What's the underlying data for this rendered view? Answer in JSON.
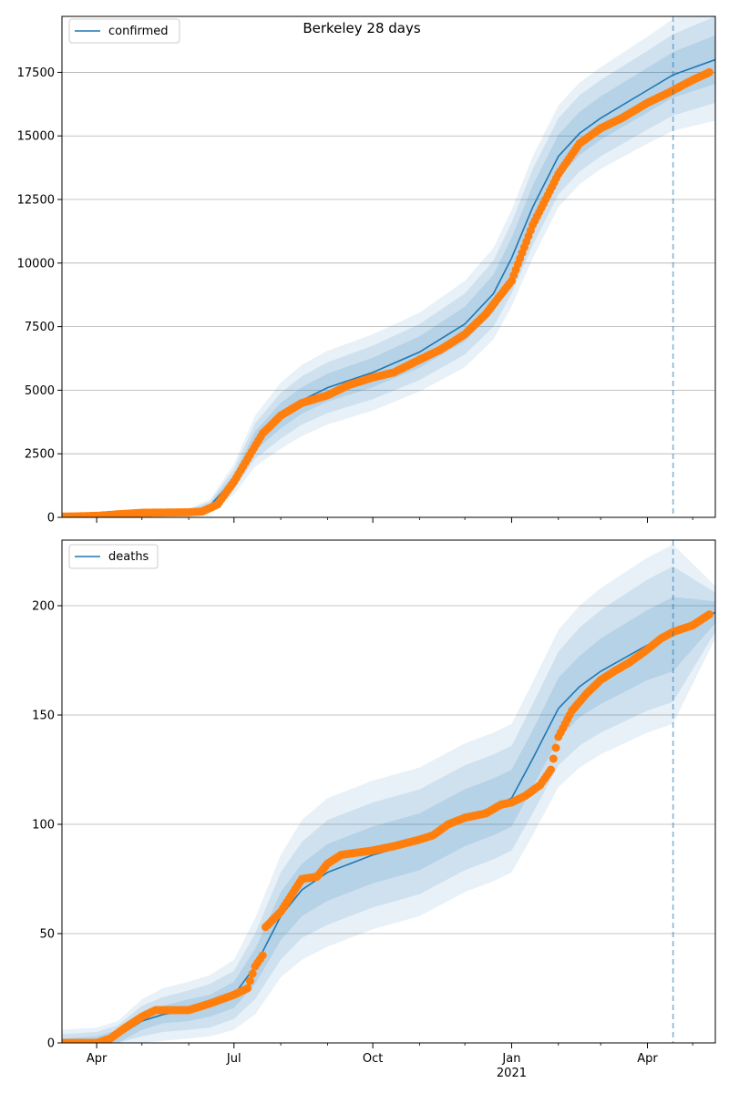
{
  "title": "Berkeley 28 days",
  "colors": {
    "line": "#1f77b4",
    "points": "#ff7f0e",
    "band": "#1f77b4",
    "grid": "#b0b0b0",
    "axis": "#000000"
  },
  "x_axis": {
    "tick_labels": [
      {
        "label": "Apr",
        "sub": "",
        "date": "2020-04-01"
      },
      {
        "label": "Jul",
        "sub": "",
        "date": "2020-07-01"
      },
      {
        "label": "Oct",
        "sub": "",
        "date": "2020-10-01"
      },
      {
        "label": "Jan",
        "sub": "2021",
        "date": "2021-01-01"
      },
      {
        "label": "Apr",
        "sub": "",
        "date": "2021-04-01"
      }
    ],
    "minor_tick_dates": [
      "2020-05-01",
      "2020-06-01",
      "2020-08-01",
      "2020-09-01",
      "2020-11-01",
      "2020-12-01",
      "2021-02-01",
      "2021-03-01",
      "2021-05-01"
    ],
    "range": [
      "2020-03-09",
      "2021-05-16"
    ],
    "forecast_start": "2021-04-18"
  },
  "chart_data": [
    {
      "type": "line",
      "legend": "confirmed",
      "legend_position": "upper-left",
      "grid": "horizontal",
      "ylim": [
        0,
        19700
      ],
      "yticks": [
        0,
        2500,
        5000,
        7500,
        10000,
        12500,
        15000,
        17500
      ],
      "fit": {
        "dates": [
          "2020-03-09",
          "2020-04-01",
          "2020-05-01",
          "2020-06-01",
          "2020-06-15",
          "2020-07-01",
          "2020-07-15",
          "2020-08-01",
          "2020-08-15",
          "2020-09-01",
          "2020-10-01",
          "2020-11-01",
          "2020-12-01",
          "2020-12-20",
          "2021-01-01",
          "2021-01-15",
          "2021-02-01",
          "2021-02-15",
          "2021-03-01",
          "2021-04-01",
          "2021-04-18",
          "2021-05-16"
        ],
        "values": [
          30,
          60,
          180,
          200,
          450,
          1500,
          3000,
          4000,
          4600,
          5100,
          5700,
          6500,
          7600,
          8800,
          10200,
          12200,
          14200,
          15100,
          15700,
          16800,
          17400,
          18000
        ],
        "bands": [
          {
            "opacity": 0.1,
            "spread": [
              40,
              60,
              120,
              150,
              250,
              600,
              1000,
              1300,
              1400,
              1450,
              1500,
              1550,
              1700,
              1800,
              1900,
              2000,
              2000,
              2000,
              2000,
              2100,
              2200,
              2400
            ]
          },
          {
            "opacity": 0.12,
            "spread": [
              25,
              40,
              80,
              100,
              170,
              400,
              700,
              900,
              950,
              1000,
              1050,
              1100,
              1200,
              1300,
              1400,
              1500,
              1500,
              1500,
              1500,
              1550,
              1600,
              1700
            ]
          },
          {
            "opacity": 0.14,
            "spread": [
              12,
              20,
              40,
              50,
              90,
              200,
              380,
              500,
              520,
              550,
              580,
              620,
              680,
              750,
              800,
              850,
              850,
              850,
              850,
              880,
              900,
              950
            ]
          }
        ]
      },
      "observed": {
        "dates": [
          "2020-03-09",
          "2020-03-20",
          "2020-04-01",
          "2020-04-15",
          "2020-05-01",
          "2020-05-15",
          "2020-06-01",
          "2020-06-10",
          "2020-06-20",
          "2020-07-01",
          "2020-07-10",
          "2020-07-20",
          "2020-08-01",
          "2020-08-15",
          "2020-09-01",
          "2020-09-15",
          "2020-10-01",
          "2020-10-15",
          "2020-11-01",
          "2020-11-15",
          "2020-12-01",
          "2020-12-15",
          "2021-01-01",
          "2021-01-15",
          "2021-02-01",
          "2021-02-15",
          "2021-03-01",
          "2021-03-15",
          "2021-04-01",
          "2021-04-15",
          "2021-05-01",
          "2021-05-12"
        ],
        "values": [
          30,
          40,
          60,
          120,
          180,
          190,
          200,
          230,
          500,
          1400,
          2300,
          3300,
          4000,
          4500,
          4800,
          5200,
          5500,
          5700,
          6200,
          6600,
          7200,
          8000,
          9300,
          11500,
          13500,
          14700,
          15300,
          15700,
          16300,
          16700,
          17200,
          17500
        ]
      }
    },
    {
      "type": "line",
      "legend": "deaths",
      "legend_position": "upper-left",
      "grid": "horizontal",
      "ylim": [
        0,
        230
      ],
      "yticks": [
        0,
        50,
        100,
        150,
        200
      ],
      "fit": {
        "dates": [
          "2020-03-09",
          "2020-04-01",
          "2020-04-15",
          "2020-05-01",
          "2020-05-15",
          "2020-06-01",
          "2020-06-15",
          "2020-07-01",
          "2020-07-15",
          "2020-08-01",
          "2020-08-15",
          "2020-09-01",
          "2020-10-01",
          "2020-11-01",
          "2020-12-01",
          "2020-12-20",
          "2021-01-01",
          "2021-01-15",
          "2021-02-01",
          "2021-02-15",
          "2021-03-01",
          "2021-04-01",
          "2021-04-18",
          "2021-05-16"
        ],
        "values": [
          0,
          1,
          3,
          10,
          13,
          15,
          17,
          22,
          35,
          58,
          70,
          78,
          86,
          92,
          103,
          108,
          112,
          130,
          153,
          163,
          170,
          182,
          187,
          197
        ],
        "bands": [
          {
            "opacity": 0.1,
            "spread": [
              6,
              6,
              7,
              10,
              12,
              13,
              14,
              16,
              22,
              28,
              32,
              34,
              34,
              34,
              34,
              34,
              34,
              35,
              36,
              37,
              38,
              40,
              41,
              12
            ]
          },
          {
            "opacity": 0.12,
            "spread": [
              4,
              4,
              5,
              7,
              8,
              9,
              10,
              11,
              15,
              20,
              22,
              24,
              24,
              24,
              24,
              24,
              24,
              25,
              26,
              27,
              28,
              30,
              31,
              9
            ]
          },
          {
            "opacity": 0.14,
            "spread": [
              2,
              2,
              3,
              4,
              4,
              5,
              5,
              6,
              8,
              11,
              12,
              13,
              13,
              13,
              13,
              13,
              13,
              13,
              14,
              14,
              15,
              16,
              17,
              5
            ]
          }
        ]
      },
      "observed": {
        "dates": [
          "2020-03-09",
          "2020-04-01",
          "2020-04-10",
          "2020-04-20",
          "2020-05-01",
          "2020-05-10",
          "2020-05-20",
          "2020-06-01",
          "2020-06-15",
          "2020-07-01",
          "2020-07-10",
          "2020-07-15",
          "2020-07-20",
          "2020-07-22",
          "2020-08-01",
          "2020-08-15",
          "2020-08-25",
          "2020-09-01",
          "2020-09-10",
          "2020-09-20",
          "2020-10-01",
          "2020-10-15",
          "2020-11-01",
          "2020-11-10",
          "2020-11-20",
          "2020-12-01",
          "2020-12-15",
          "2020-12-25",
          "2021-01-01",
          "2021-01-10",
          "2021-01-20",
          "2021-01-27",
          "2021-02-01",
          "2021-02-10",
          "2021-02-20",
          "2021-03-01",
          "2021-03-10",
          "2021-03-20",
          "2021-04-01",
          "2021-04-10",
          "2021-04-18",
          "2021-05-01",
          "2021-05-12"
        ],
        "values": [
          0,
          0,
          2,
          7,
          12,
          15,
          15,
          15,
          18,
          22,
          25,
          35,
          40,
          53,
          60,
          75,
          76,
          82,
          86,
          87,
          88,
          90,
          93,
          95,
          100,
          103,
          105,
          109,
          110,
          113,
          118,
          125,
          140,
          152,
          160,
          166,
          170,
          174,
          180,
          185,
          188,
          191,
          196
        ]
      }
    }
  ]
}
